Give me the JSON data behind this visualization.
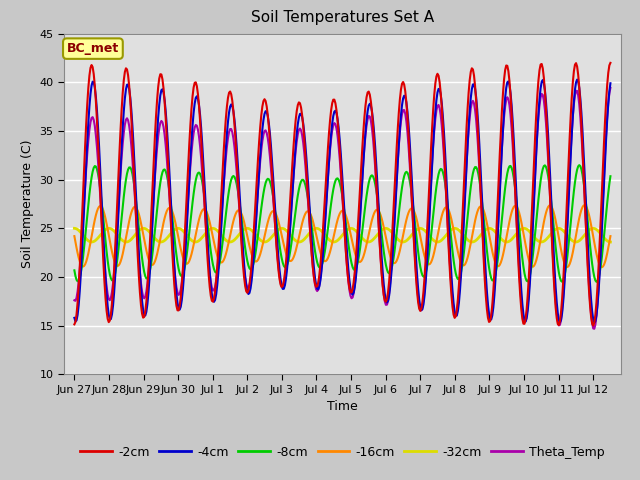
{
  "title": "Soil Temperatures Set A",
  "xlabel": "Time",
  "ylabel": "Soil Temperature (C)",
  "ylim": [
    10,
    45
  ],
  "yticks": [
    10,
    15,
    20,
    25,
    30,
    35,
    40,
    45
  ],
  "fig_facecolor": "#c8c8c8",
  "plot_facecolor": "#e0e0e0",
  "series": {
    "-2cm": {
      "color": "#dd0000",
      "lw": 1.5
    },
    "-4cm": {
      "color": "#0000cc",
      "lw": 1.5
    },
    "-8cm": {
      "color": "#00cc00",
      "lw": 1.5
    },
    "-16cm": {
      "color": "#ff8800",
      "lw": 1.5
    },
    "-32cm": {
      "color": "#dddd00",
      "lw": 2.0
    },
    "Theta_Temp": {
      "color": "#aa00aa",
      "lw": 1.5
    }
  },
  "tick_label_fontsize": 8,
  "legend_fontsize": 9,
  "title_fontsize": 11,
  "annotation_text": "BC_met",
  "annotation_box_color": "#ffff99",
  "annotation_border_color": "#999900",
  "annotation_text_color": "#8B0000"
}
